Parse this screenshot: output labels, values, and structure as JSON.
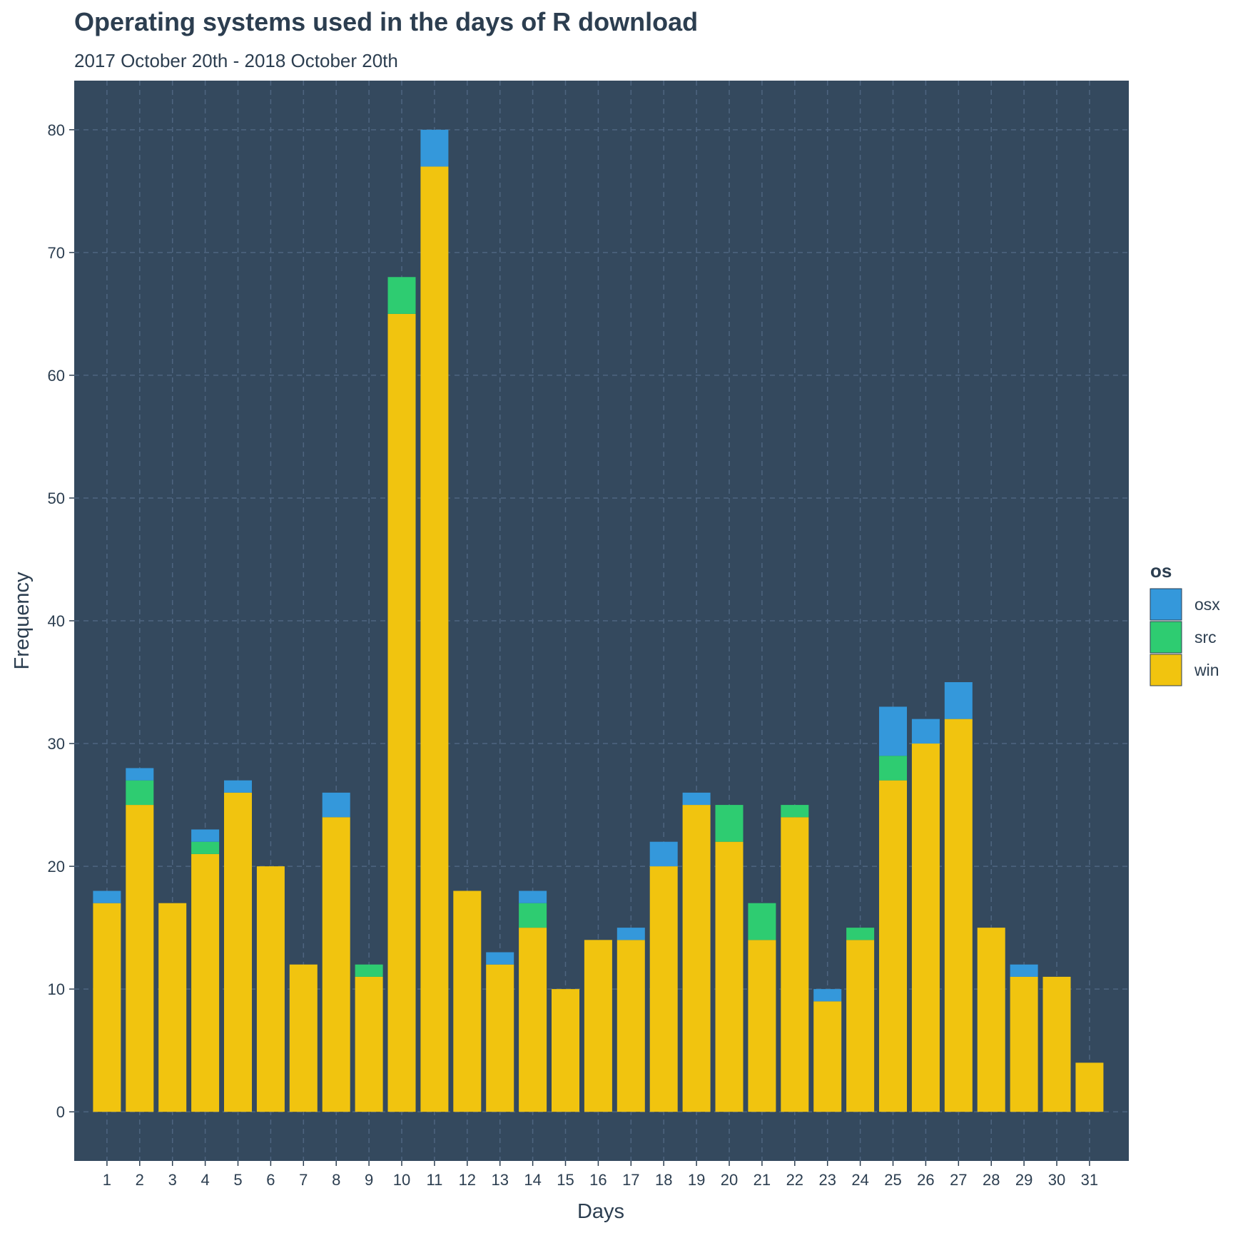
{
  "chart_data": {
    "type": "bar",
    "stacked": true,
    "title": "Operating systems used in the days of R download",
    "subtitle": "2017 October 20th - 2018 October 20th",
    "xlabel": "Days",
    "ylabel": "Frequency",
    "categories": [
      "1",
      "2",
      "3",
      "4",
      "5",
      "6",
      "7",
      "8",
      "9",
      "10",
      "11",
      "12",
      "13",
      "14",
      "15",
      "16",
      "17",
      "18",
      "19",
      "20",
      "21",
      "22",
      "23",
      "24",
      "25",
      "26",
      "27",
      "28",
      "29",
      "30",
      "31"
    ],
    "series": [
      {
        "name": "win",
        "color": "#f1c40f",
        "values": [
          17,
          25,
          17,
          21,
          26,
          20,
          12,
          24,
          11,
          65,
          77,
          18,
          12,
          15,
          10,
          14,
          14,
          20,
          25,
          22,
          14,
          24,
          9,
          14,
          27,
          30,
          32,
          15,
          11,
          11,
          4
        ]
      },
      {
        "name": "src",
        "color": "#2ecc71",
        "values": [
          0,
          2,
          0,
          1,
          0,
          0,
          0,
          0,
          1,
          3,
          0,
          0,
          0,
          2,
          0,
          0,
          0,
          0,
          0,
          3,
          3,
          1,
          0,
          1,
          2,
          0,
          0,
          0,
          0,
          0,
          0
        ]
      },
      {
        "name": "osx",
        "color": "#3498db",
        "values": [
          1,
          1,
          0,
          1,
          1,
          0,
          0,
          2,
          0,
          0,
          3,
          0,
          1,
          1,
          0,
          0,
          1,
          2,
          1,
          0,
          0,
          0,
          1,
          0,
          4,
          2,
          3,
          0,
          1,
          0,
          0
        ]
      }
    ],
    "ylim": [
      -4,
      84
    ],
    "yticks": [
      0,
      10,
      20,
      30,
      40,
      50,
      60,
      70,
      80
    ],
    "grid": true,
    "legend": {
      "title": "os",
      "position": "right",
      "entries": [
        {
          "label": "osx",
          "color": "#3498db"
        },
        {
          "label": "src",
          "color": "#2ecc71"
        },
        {
          "label": "win",
          "color": "#f1c40f"
        }
      ]
    },
    "colors": {
      "panel_background": "#34495e",
      "grid": "#4e6580",
      "text": "#2c3e50"
    }
  }
}
